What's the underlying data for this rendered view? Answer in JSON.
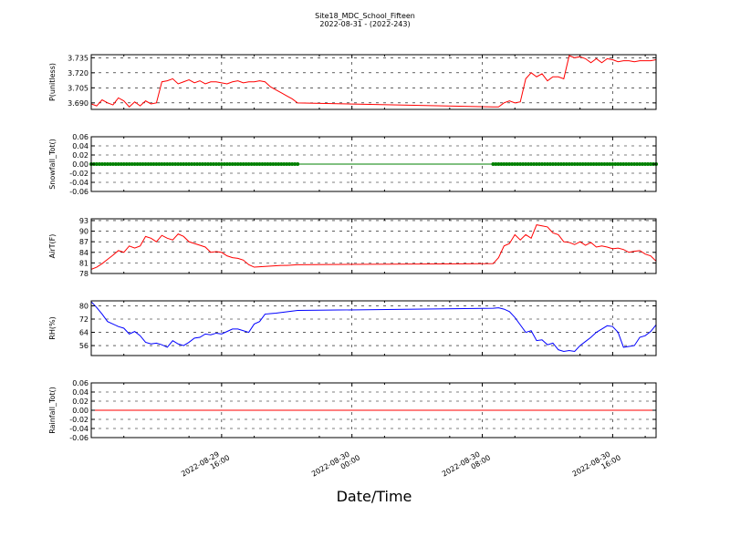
{
  "figure": {
    "title": "Site18_MDC_School_Fifteen",
    "subtitle": "2022-08-31 - (2022-243)",
    "xlabel": "Date/Time"
  },
  "chart_data": {
    "type": "line",
    "x_ticks": [
      {
        "value": "2022-08-29T16:00",
        "line1": "2022-08-29",
        "line2": "16:00"
      },
      {
        "value": "2022-08-30T00:00",
        "line1": "2022-08-30",
        "line2": "00:00"
      },
      {
        "value": "2022-08-30T08:00",
        "line1": "2022-08-30",
        "line2": "08:00"
      },
      {
        "value": "2022-08-30T16:00",
        "line1": "2022-08-30",
        "line2": "16:00"
      }
    ],
    "x_range": [
      "2022-08-29T08:00",
      "2022-08-30T18:40"
    ],
    "panels": [
      {
        "ylabel": "P(unitless)",
        "color": "#ff0000",
        "marker": "none",
        "ylim": [
          3.6835,
          3.738
        ],
        "yticks": [
          3.69,
          3.705,
          3.72,
          3.735
        ],
        "ytick_labels": [
          "3.690",
          "3.705",
          "3.720",
          "3.735"
        ],
        "x": [
          "2022-08-29T08:00",
          "2022-08-29T08:20",
          "2022-08-29T08:40",
          "2022-08-29T09:00",
          "2022-08-29T09:20",
          "2022-08-29T09:40",
          "2022-08-29T10:00",
          "2022-08-29T10:20",
          "2022-08-29T10:40",
          "2022-08-29T11:00",
          "2022-08-29T11:20",
          "2022-08-29T11:40",
          "2022-08-29T12:00",
          "2022-08-29T12:20",
          "2022-08-29T12:40",
          "2022-08-29T13:00",
          "2022-08-29T13:20",
          "2022-08-29T13:40",
          "2022-08-29T14:00",
          "2022-08-29T14:20",
          "2022-08-29T14:40",
          "2022-08-29T15:00",
          "2022-08-29T15:20",
          "2022-08-29T15:40",
          "2022-08-29T16:00",
          "2022-08-29T16:20",
          "2022-08-29T16:40",
          "2022-08-29T17:00",
          "2022-08-29T17:20",
          "2022-08-29T17:40",
          "2022-08-29T18:00",
          "2022-08-29T18:20",
          "2022-08-29T18:40",
          "2022-08-29T19:00",
          "2022-08-29T19:20",
          "2022-08-29T19:40",
          "2022-08-29T20:00",
          "2022-08-29T20:20",
          "2022-08-29T20:40",
          "2022-08-30T08:40",
          "2022-08-30T09:00",
          "2022-08-30T09:20",
          "2022-08-30T09:40",
          "2022-08-30T10:00",
          "2022-08-30T10:20",
          "2022-08-30T10:40",
          "2022-08-30T11:00",
          "2022-08-30T11:20",
          "2022-08-30T11:40",
          "2022-08-30T12:00",
          "2022-08-30T12:20",
          "2022-08-30T12:40",
          "2022-08-30T13:00",
          "2022-08-30T13:20",
          "2022-08-30T13:40",
          "2022-08-30T14:00",
          "2022-08-30T14:20",
          "2022-08-30T14:40",
          "2022-08-30T15:00",
          "2022-08-30T15:20",
          "2022-08-30T15:40",
          "2022-08-30T16:00",
          "2022-08-30T16:20",
          "2022-08-30T16:40",
          "2022-08-30T17:00",
          "2022-08-30T17:20",
          "2022-08-30T17:40",
          "2022-08-30T18:00",
          "2022-08-30T18:20",
          "2022-08-30T18:40"
        ],
        "y": [
          3.689,
          3.687,
          3.693,
          3.69,
          3.688,
          3.695,
          3.692,
          3.686,
          3.691,
          3.687,
          3.692,
          3.689,
          3.69,
          3.711,
          3.712,
          3.714,
          3.709,
          3.711,
          3.713,
          3.71,
          3.712,
          3.709,
          3.711,
          3.711,
          3.71,
          3.709,
          3.711,
          3.712,
          3.71,
          3.711,
          3.711,
          3.712,
          3.711,
          3.706,
          3.703,
          3.7,
          3.697,
          3.694,
          3.69,
          3.686,
          3.686,
          3.69,
          3.692,
          3.69,
          3.691,
          3.714,
          3.72,
          3.716,
          3.719,
          3.712,
          3.716,
          3.716,
          3.714,
          3.737,
          3.735,
          3.736,
          3.734,
          3.73,
          3.734,
          3.73,
          3.734,
          3.733,
          3.731,
          3.732,
          3.732,
          3.731,
          3.732,
          3.732,
          3.732,
          3.733
        ]
      },
      {
        "ylabel": "Snowfall_Tot()",
        "color": "#008000",
        "marker": "dot",
        "ylim": [
          -0.06,
          0.06
        ],
        "yticks": [
          -0.06,
          -0.04,
          -0.02,
          0.0,
          0.02,
          0.04,
          0.06
        ],
        "ytick_labels": [
          "-0.06",
          "-0.04",
          "-0.02",
          "0.00",
          "0.02",
          "0.04",
          "0.06"
        ],
        "x": [
          "2022-08-29T08:00",
          "2022-08-29T12:00",
          "2022-08-29T16:00",
          "2022-08-29T20:40",
          "2022-08-30T08:40",
          "2022-08-30T12:00",
          "2022-08-30T16:00",
          "2022-08-30T18:40"
        ],
        "y": [
          0,
          0,
          0,
          0,
          0,
          0,
          0,
          0
        ],
        "dot_ranges": [
          [
            "2022-08-29T08:00",
            "2022-08-29T20:40"
          ],
          [
            "2022-08-30T08:40",
            "2022-08-30T18:40"
          ]
        ],
        "dot_interval_minutes": 10
      },
      {
        "ylabel": "AirT(F)",
        "color": "#ff0000",
        "marker": "none",
        "ylim": [
          78,
          93.5
        ],
        "yticks": [
          78,
          81,
          84,
          87,
          90,
          93
        ],
        "ytick_labels": [
          "78",
          "81",
          "84",
          "87",
          "90",
          "93"
        ],
        "x": [
          "2022-08-29T08:00",
          "2022-08-29T08:20",
          "2022-08-29T08:40",
          "2022-08-29T09:00",
          "2022-08-29T09:20",
          "2022-08-29T09:40",
          "2022-08-29T10:00",
          "2022-08-29T10:20",
          "2022-08-29T10:40",
          "2022-08-29T11:00",
          "2022-08-29T11:20",
          "2022-08-29T11:40",
          "2022-08-29T12:00",
          "2022-08-29T12:20",
          "2022-08-29T12:40",
          "2022-08-29T13:00",
          "2022-08-29T13:20",
          "2022-08-29T13:40",
          "2022-08-29T14:00",
          "2022-08-29T14:20",
          "2022-08-29T14:40",
          "2022-08-29T15:00",
          "2022-08-29T15:20",
          "2022-08-29T15:40",
          "2022-08-29T16:00",
          "2022-08-29T16:20",
          "2022-08-29T16:40",
          "2022-08-29T17:00",
          "2022-08-29T17:20",
          "2022-08-29T17:40",
          "2022-08-29T18:00",
          "2022-08-29T18:20",
          "2022-08-29T18:40",
          "2022-08-29T19:00",
          "2022-08-29T19:20",
          "2022-08-29T19:40",
          "2022-08-29T20:00",
          "2022-08-29T20:20",
          "2022-08-29T20:40",
          "2022-08-30T08:40",
          "2022-08-30T09:00",
          "2022-08-30T09:20",
          "2022-08-30T09:40",
          "2022-08-30T10:00",
          "2022-08-30T10:20",
          "2022-08-30T10:40",
          "2022-08-30T11:00",
          "2022-08-30T11:20",
          "2022-08-30T11:40",
          "2022-08-30T12:00",
          "2022-08-30T12:20",
          "2022-08-30T12:40",
          "2022-08-30T13:00",
          "2022-08-30T13:20",
          "2022-08-30T13:40",
          "2022-08-30T14:00",
          "2022-08-30T14:20",
          "2022-08-30T14:40",
          "2022-08-30T15:00",
          "2022-08-30T15:20",
          "2022-08-30T15:40",
          "2022-08-30T16:00",
          "2022-08-30T16:20",
          "2022-08-30T16:40",
          "2022-08-30T17:00",
          "2022-08-30T17:20",
          "2022-08-30T17:40",
          "2022-08-30T18:00",
          "2022-08-30T18:20",
          "2022-08-30T18:40"
        ],
        "y": [
          79.2,
          79.8,
          80.8,
          82.0,
          83.2,
          84.5,
          84.0,
          85.8,
          85.2,
          85.8,
          88.5,
          88.0,
          87.0,
          88.8,
          88.0,
          87.5,
          89.2,
          88.5,
          87.0,
          86.5,
          86.0,
          85.5,
          84.0,
          84.2,
          84.0,
          83.0,
          82.5,
          82.3,
          81.8,
          80.5,
          79.8,
          79.9,
          80.0,
          80.1,
          80.2,
          80.3,
          80.3,
          80.4,
          80.5,
          80.8,
          82.5,
          85.8,
          86.5,
          89.0,
          87.5,
          89.0,
          88.0,
          91.8,
          91.5,
          91.2,
          89.5,
          89.0,
          87.0,
          86.8,
          86.2,
          87.0,
          86.0,
          86.8,
          85.5,
          85.8,
          85.5,
          85.0,
          85.2,
          84.8,
          84.0,
          84.3,
          84.5,
          83.5,
          83.0,
          81.5
        ]
      },
      {
        "ylabel": "RH(%)",
        "color": "#0000ff",
        "marker": "none",
        "ylim": [
          50,
          83
        ],
        "yticks": [
          56,
          64,
          72,
          80
        ],
        "ytick_labels": [
          "56",
          "64",
          "72",
          "80"
        ],
        "x": [
          "2022-08-29T08:00",
          "2022-08-29T08:20",
          "2022-08-29T08:40",
          "2022-08-29T09:00",
          "2022-08-29T09:20",
          "2022-08-29T09:40",
          "2022-08-29T10:00",
          "2022-08-29T10:20",
          "2022-08-29T10:40",
          "2022-08-29T11:00",
          "2022-08-29T11:20",
          "2022-08-29T11:40",
          "2022-08-29T12:00",
          "2022-08-29T12:20",
          "2022-08-29T12:40",
          "2022-08-29T13:00",
          "2022-08-29T13:20",
          "2022-08-29T13:40",
          "2022-08-29T14:00",
          "2022-08-29T14:20",
          "2022-08-29T14:40",
          "2022-08-29T15:00",
          "2022-08-29T15:20",
          "2022-08-29T15:40",
          "2022-08-29T16:00",
          "2022-08-29T16:20",
          "2022-08-29T16:40",
          "2022-08-29T17:00",
          "2022-08-29T17:20",
          "2022-08-29T17:40",
          "2022-08-29T18:00",
          "2022-08-29T18:20",
          "2022-08-29T18:40",
          "2022-08-29T19:00",
          "2022-08-29T19:20",
          "2022-08-29T19:40",
          "2022-08-29T20:00",
          "2022-08-29T20:20",
          "2022-08-29T20:40",
          "2022-08-30T08:40",
          "2022-08-30T09:00",
          "2022-08-30T09:20",
          "2022-08-30T09:40",
          "2022-08-30T10:00",
          "2022-08-30T10:20",
          "2022-08-30T10:40",
          "2022-08-30T11:00",
          "2022-08-30T11:20",
          "2022-08-30T11:40",
          "2022-08-30T12:00",
          "2022-08-30T12:20",
          "2022-08-30T12:40",
          "2022-08-30T13:00",
          "2022-08-30T13:20",
          "2022-08-30T13:40",
          "2022-08-30T14:00",
          "2022-08-30T14:20",
          "2022-08-30T14:40",
          "2022-08-30T15:00",
          "2022-08-30T15:20",
          "2022-08-30T15:40",
          "2022-08-30T16:00",
          "2022-08-30T16:20",
          "2022-08-30T16:40",
          "2022-08-30T17:00",
          "2022-08-30T17:20",
          "2022-08-30T17:40",
          "2022-08-30T18:00",
          "2022-08-30T18:20",
          "2022-08-30T18:40"
        ],
        "y": [
          82.5,
          79.0,
          75.0,
          70.5,
          69.0,
          67.5,
          66.5,
          63.0,
          64.5,
          62.0,
          58.0,
          57.0,
          57.5,
          56.5,
          55.0,
          59.0,
          57.0,
          56.0,
          58.0,
          60.5,
          61.0,
          63.0,
          62.5,
          63.5,
          63.0,
          64.5,
          66.0,
          66.0,
          65.0,
          64.0,
          69.0,
          70.5,
          75.0,
          75.3,
          75.6,
          76.0,
          76.4,
          76.8,
          77.2,
          78.5,
          78.8,
          78.0,
          76.5,
          73.0,
          68.5,
          64.0,
          65.0,
          59.0,
          59.5,
          56.5,
          57.5,
          53.5,
          52.5,
          53.0,
          52.5,
          56.0,
          58.5,
          61.0,
          64.0,
          66.0,
          68.0,
          67.5,
          64.0,
          55.0,
          55.5,
          56.0,
          61.0,
          62.0,
          64.5,
          68.5
        ]
      },
      {
        "ylabel": "Rainfall_Tot()",
        "color": "#ff0000",
        "marker": "none",
        "ylim": [
          -0.06,
          0.06
        ],
        "yticks": [
          -0.06,
          -0.04,
          -0.02,
          0.0,
          0.02,
          0.04,
          0.06
        ],
        "ytick_labels": [
          "-0.06",
          "-0.04",
          "-0.02",
          "0.00",
          "0.02",
          "0.04",
          "0.06"
        ],
        "x": [
          "2022-08-29T08:00",
          "2022-08-30T18:40"
        ],
        "y": [
          0,
          0
        ]
      }
    ]
  }
}
